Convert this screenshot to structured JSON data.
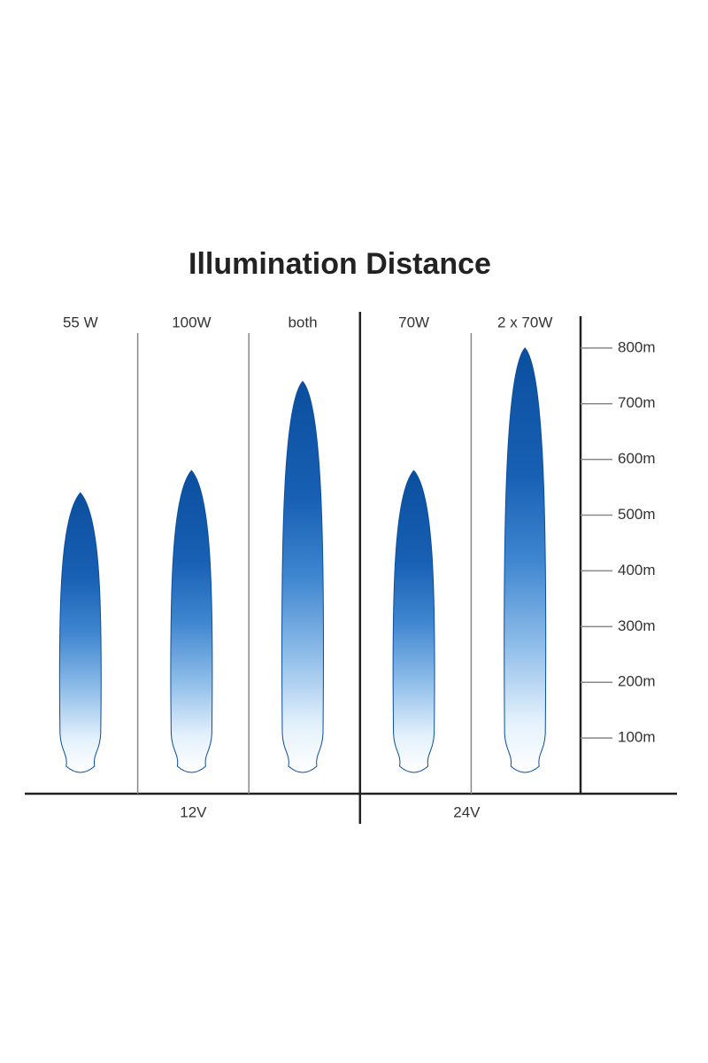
{
  "chart_data": {
    "type": "flame",
    "title": "Illumination Distance",
    "categories": [
      "55 W",
      "100W",
      "both",
      "70W",
      "2 x 70W"
    ],
    "groups": [
      {
        "label": "12V",
        "size": 3
      },
      {
        "label": "24V",
        "size": 2
      }
    ],
    "values": [
      540,
      580,
      740,
      580,
      800
    ],
    "ylim": [
      0,
      857
    ],
    "yticks": [
      {
        "value": 100,
        "label": "100m"
      },
      {
        "value": 200,
        "label": "200m"
      },
      {
        "value": 300,
        "label": "300m"
      },
      {
        "value": 400,
        "label": "400m"
      },
      {
        "value": 500,
        "label": "500m"
      },
      {
        "value": 600,
        "label": "600m"
      },
      {
        "value": 700,
        "label": "700m"
      },
      {
        "value": 800,
        "label": "800m"
      }
    ],
    "color": "#0b4e9e"
  }
}
